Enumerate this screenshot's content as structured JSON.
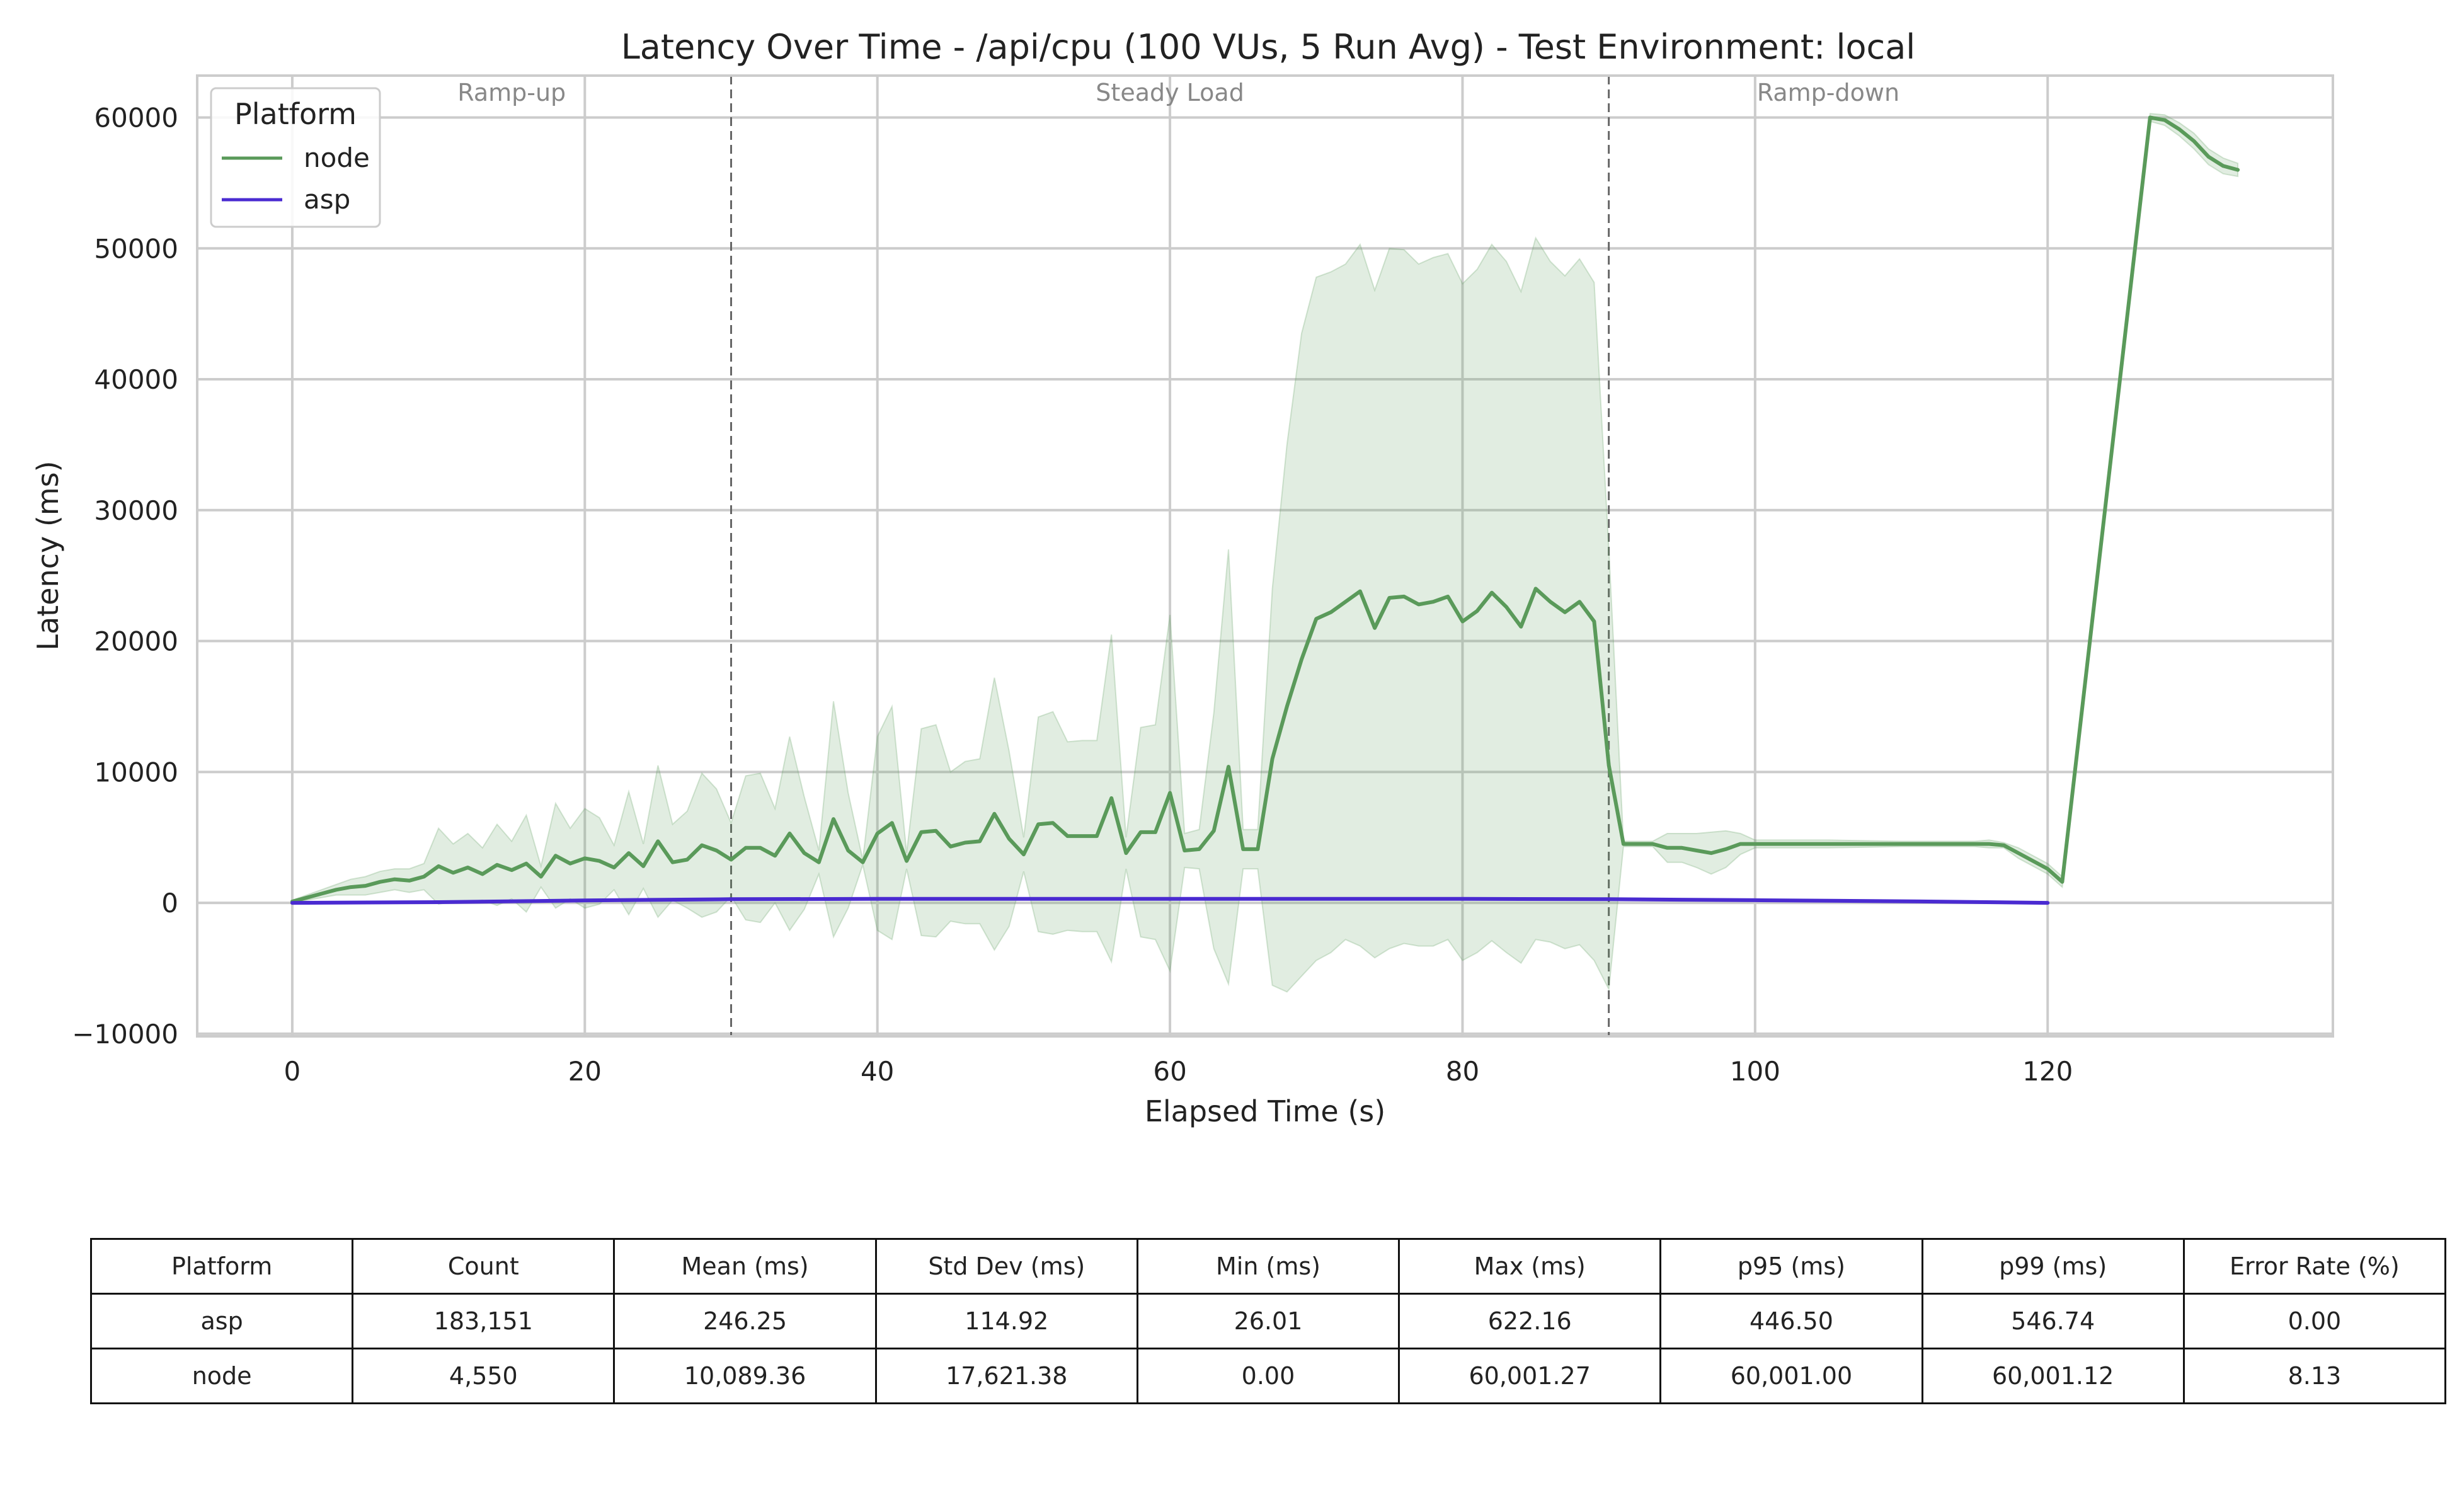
{
  "chart_data": {
    "type": "line",
    "title": "Latency Over Time - /api/cpu (100 VUs, 5 Run Avg) - Test Environment: local",
    "xlabel": "Elapsed Time (s)",
    "ylabel": "Latency (ms)",
    "xlim": [
      -6.5,
      139.5
    ],
    "ylim": [
      -10200,
      63200
    ],
    "x_ticks": [
      0,
      20,
      40,
      60,
      80,
      100,
      120
    ],
    "y_ticks": [
      -10000,
      0,
      10000,
      20000,
      30000,
      40000,
      50000,
      60000
    ],
    "x_tick_labels": [
      "0",
      "20",
      "40",
      "60",
      "80",
      "100",
      "120"
    ],
    "y_tick_labels": [
      "−10000",
      "0",
      "10000",
      "20000",
      "30000",
      "40000",
      "50000",
      "60000"
    ],
    "grid": true,
    "legend": {
      "title": "Platform",
      "placement": "top-left"
    },
    "phase_markers": [
      30,
      90
    ],
    "phases": [
      {
        "label": "Ramp-up",
        "x": 15
      },
      {
        "label": "Steady Load",
        "x": 60
      },
      {
        "label": "Ramp-down",
        "x": 105
      }
    ],
    "series": [
      {
        "name": "node",
        "color": "#5a9a5a",
        "band_color": "#5a9a5a",
        "x": [
          0,
          1,
          2,
          3,
          4,
          5,
          6,
          7,
          8,
          9,
          10,
          11,
          12,
          13,
          14,
          15,
          16,
          17,
          18,
          19,
          20,
          21,
          22,
          23,
          24,
          25,
          26,
          27,
          28,
          29,
          30,
          31,
          32,
          33,
          34,
          35,
          36,
          37,
          38,
          39,
          40,
          41,
          42,
          43,
          44,
          45,
          46,
          47,
          48,
          49,
          50,
          51,
          52,
          53,
          54,
          55,
          56,
          57,
          58,
          59,
          60,
          61,
          62,
          63,
          64,
          65,
          66,
          67,
          68,
          69,
          70,
          71,
          72,
          73,
          74,
          75,
          76,
          77,
          78,
          79,
          80,
          81,
          82,
          83,
          84,
          85,
          86,
          87,
          88,
          89,
          90,
          91,
          92,
          93,
          94,
          95,
          96,
          97,
          98,
          99,
          100,
          105,
          110,
          115,
          116,
          117,
          118,
          119,
          120,
          121,
          127,
          128,
          129,
          130,
          131,
          132,
          133
        ],
        "y": [
          100,
          400,
          700,
          1000,
          1200,
          1300,
          1600,
          1800,
          1700,
          2000,
          2800,
          2300,
          2700,
          2200,
          2900,
          2500,
          3000,
          2000,
          3600,
          3000,
          3400,
          3200,
          2700,
          3800,
          2800,
          4700,
          3100,
          3300,
          4400,
          4000,
          3300,
          4200,
          4200,
          3600,
          5300,
          3800,
          3100,
          6400,
          4000,
          3100,
          5300,
          6100,
          3200,
          5400,
          5500,
          4300,
          4600,
          4700,
          6800,
          4900,
          3700,
          6000,
          6100,
          5100,
          5100,
          5100,
          8000,
          3800,
          5400,
          5400,
          8400,
          4000,
          4100,
          5500,
          10400,
          4100,
          4100,
          11000,
          15000,
          18600,
          21700,
          22200,
          23000,
          23800,
          21000,
          23300,
          23400,
          22800,
          23000,
          23400,
          21500,
          22300,
          23700,
          22600,
          21100,
          24000,
          23000,
          22200,
          23000,
          21500,
          10500,
          4500,
          4500,
          4500,
          4200,
          4200,
          4000,
          3800,
          4100,
          4500,
          4500,
          4500,
          4500,
          4500,
          4500,
          4400,
          3800,
          3200,
          2600,
          1600,
          60000,
          59800,
          59100,
          58200,
          57000,
          56300,
          56000
        ],
        "upper": [
          200,
          600,
          1000,
          1400,
          1800,
          2000,
          2400,
          2600,
          2600,
          3000,
          5700,
          4500,
          5300,
          4200,
          6000,
          4700,
          6700,
          2800,
          7600,
          5700,
          7200,
          6500,
          4400,
          8500,
          4500,
          10500,
          6000,
          7000,
          9900,
          8700,
          6100,
          9700,
          9900,
          7200,
          12700,
          8100,
          4000,
          15400,
          8400,
          3300,
          12700,
          15000,
          3800,
          13300,
          13600,
          10000,
          10800,
          11000,
          17200,
          11600,
          5000,
          14200,
          14600,
          12300,
          12400,
          12400,
          20500,
          5000,
          13400,
          13600,
          22000,
          5300,
          5600,
          14500,
          27000,
          5600,
          5600,
          24000,
          35000,
          43500,
          47800,
          48200,
          48800,
          50300,
          46800,
          50000,
          49900,
          48800,
          49300,
          49600,
          47300,
          48400,
          50300,
          49000,
          46700,
          50800,
          49000,
          47900,
          49200,
          47400,
          27000,
          4700,
          4700,
          4700,
          5300,
          5300,
          5300,
          5400,
          5500,
          5300,
          4800,
          4800,
          4700,
          4700,
          4800,
          4600,
          4200,
          3600,
          3000,
          2000,
          60300,
          60200,
          59600,
          58800,
          57600,
          56900,
          56500
        ],
        "lower": [
          0,
          200,
          400,
          600,
          600,
          600,
          800,
          1000,
          800,
          1000,
          -100,
          100,
          100,
          200,
          -200,
          300,
          -700,
          1200,
          -400,
          300,
          -400,
          -100,
          1000,
          -900,
          1100,
          -1100,
          200,
          -400,
          -1100,
          -700,
          500,
          -1300,
          -1500,
          0,
          -2100,
          -500,
          2200,
          -2600,
          -400,
          2900,
          -2100,
          -2800,
          2600,
          -2500,
          -2600,
          -1400,
          -1600,
          -1600,
          -3600,
          -1800,
          2400,
          -2200,
          -2400,
          -2100,
          -2200,
          -2200,
          -4500,
          2600,
          -2600,
          -2800,
          -5200,
          2700,
          2600,
          -3500,
          -6200,
          2600,
          2600,
          -6300,
          -6800,
          -5600,
          -4400,
          -3800,
          -2800,
          -3300,
          -4200,
          -3500,
          -3100,
          -3300,
          -3300,
          -2800,
          -4400,
          -3800,
          -2900,
          -3800,
          -4600,
          -2800,
          -3000,
          -3500,
          -3200,
          -4400,
          -6600,
          4300,
          4300,
          4300,
          3100,
          3100,
          2700,
          2200,
          2700,
          3700,
          4200,
          4200,
          4300,
          4300,
          4200,
          4200,
          3400,
          2800,
          2200,
          1200,
          59700,
          59400,
          58600,
          57600,
          56400,
          55700,
          55500
        ]
      },
      {
        "name": "asp",
        "color": "#4a2bd1",
        "x": [
          0,
          10,
          20,
          30,
          40,
          50,
          60,
          70,
          80,
          90,
          100,
          110,
          120
        ],
        "y": [
          0,
          50,
          180,
          280,
          300,
          300,
          300,
          300,
          300,
          280,
          200,
          120,
          0
        ]
      }
    ]
  },
  "table": {
    "columns": [
      "Platform",
      "Count",
      "Mean (ms)",
      "Std Dev (ms)",
      "Min (ms)",
      "Max (ms)",
      "p95 (ms)",
      "p99 (ms)",
      "Error Rate (%)"
    ],
    "rows": [
      [
        "asp",
        "183,151",
        "246.25",
        "114.92",
        "26.01",
        "622.16",
        "446.50",
        "546.74",
        "0.00"
      ],
      [
        "node",
        "4,550",
        "10,089.36",
        "17,621.38",
        "0.00",
        "60,001.27",
        "60,001.00",
        "60,001.12",
        "8.13"
      ]
    ]
  }
}
